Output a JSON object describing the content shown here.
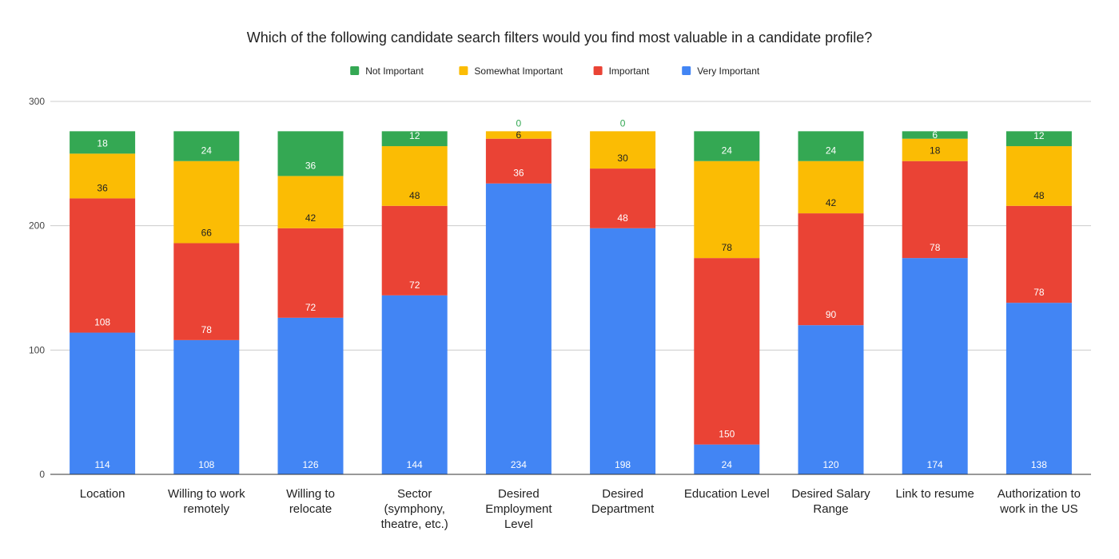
{
  "chart_data": {
    "type": "bar",
    "stacked": true,
    "title": "Which of the following candidate search filters would you find most valuable in a candidate profile?",
    "categories": [
      "Location",
      "Willing to work remotely",
      "Willing to relocate",
      "Sector (symphony, theatre, etc.)",
      "Desired Employment Level",
      "Desired Department",
      "Education Level",
      "Desired Salary Range",
      "Link to resume",
      "Authorization to work in the US"
    ],
    "category_lines": [
      [
        "Location"
      ],
      [
        "Willing to work",
        "remotely"
      ],
      [
        "Willing to",
        "relocate"
      ],
      [
        "Sector",
        "(symphony,",
        "theatre, etc.)"
      ],
      [
        "Desired",
        "Employment",
        "Level"
      ],
      [
        "Desired",
        "Department"
      ],
      [
        "Education Level"
      ],
      [
        "Desired Salary",
        "Range"
      ],
      [
        "Link to resume"
      ],
      [
        "Authorization to",
        "work in the US"
      ]
    ],
    "series": [
      {
        "name": "Very Important",
        "color": "#4285f4",
        "label_color": "#ffffff",
        "values": [
          114,
          108,
          126,
          144,
          234,
          198,
          24,
          120,
          174,
          138
        ]
      },
      {
        "name": "Important",
        "color": "#ea4335",
        "label_color": "#ffffff",
        "values": [
          108,
          78,
          72,
          72,
          36,
          48,
          150,
          90,
          78,
          78
        ]
      },
      {
        "name": "Somewhat Important",
        "color": "#fbbc04",
        "label_color": "#222222",
        "values": [
          36,
          66,
          42,
          48,
          6,
          30,
          78,
          42,
          18,
          48
        ]
      },
      {
        "name": "Not Important",
        "color": "#34a853",
        "label_color": "#ffffff",
        "values": [
          18,
          24,
          36,
          12,
          0,
          0,
          24,
          24,
          6,
          12
        ]
      }
    ],
    "legend_order": [
      "Not Important",
      "Somewhat Important",
      "Important",
      "Very Important"
    ],
    "legend_position": "top",
    "ylim": [
      0,
      300
    ],
    "yticks": [
      0,
      100,
      200,
      300
    ],
    "grid": true,
    "xlabel": "",
    "ylabel": ""
  }
}
